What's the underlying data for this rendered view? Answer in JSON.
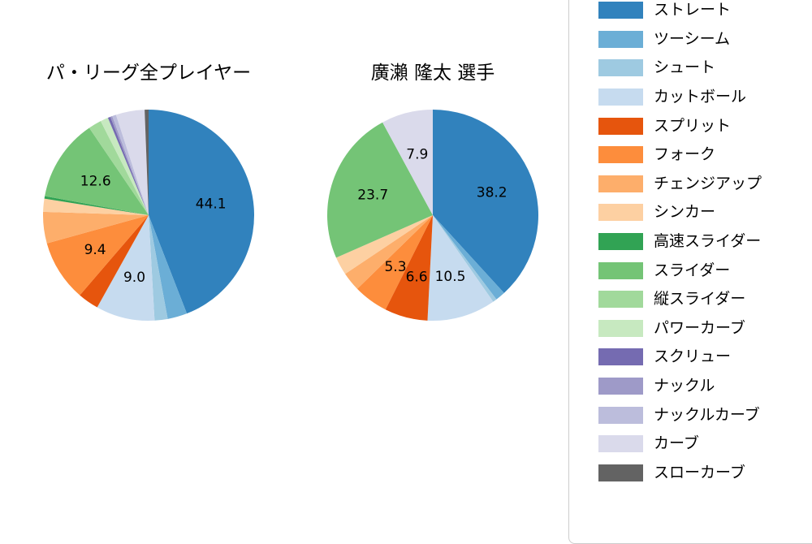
{
  "figure": {
    "background": "#ffffff"
  },
  "legend": {
    "items": [
      {
        "label": "ストレート",
        "color": "#3182bd"
      },
      {
        "label": "ツーシーム",
        "color": "#6baed6"
      },
      {
        "label": "シュート",
        "color": "#9ecae1"
      },
      {
        "label": "カットボール",
        "color": "#c6dbef"
      },
      {
        "label": "スプリット",
        "color": "#e6550d"
      },
      {
        "label": "フォーク",
        "color": "#fd8d3c"
      },
      {
        "label": "チェンジアップ",
        "color": "#fdae6b"
      },
      {
        "label": "シンカー",
        "color": "#fdd0a2"
      },
      {
        "label": "高速スライダー",
        "color": "#31a354"
      },
      {
        "label": "スライダー",
        "color": "#74c476"
      },
      {
        "label": "縦スライダー",
        "color": "#a1d99b"
      },
      {
        "label": "パワーカーブ",
        "color": "#c7e9c0"
      },
      {
        "label": "スクリュー",
        "color": "#756bb1"
      },
      {
        "label": "ナックル",
        "color": "#9e9ac8"
      },
      {
        "label": "ナックルカーブ",
        "color": "#bcbddc"
      },
      {
        "label": "カーブ",
        "color": "#dadaeb"
      },
      {
        "label": "スローカーブ",
        "color": "#636363"
      }
    ]
  },
  "chart_data": [
    {
      "type": "pie",
      "title": "パ・リーグ全プレイヤー",
      "categories": [
        "ストレート",
        "ツーシーム",
        "シュート",
        "カットボール",
        "スプリット",
        "フォーク",
        "チェンジアップ",
        "シンカー",
        "高速スライダー",
        "スライダー",
        "縦スライダー",
        "パワーカーブ",
        "スクリュー",
        "ナックル",
        "ナックルカーブ",
        "カーブ",
        "スローカーブ"
      ],
      "values": [
        44.1,
        3.0,
        2.0,
        9.0,
        3.2,
        9.4,
        4.8,
        2.0,
        0.4,
        12.6,
        2.0,
        1.2,
        0.4,
        0.3,
        0.6,
        4.4,
        0.6
      ],
      "colors": [
        "#3182bd",
        "#6baed6",
        "#9ecae1",
        "#c6dbef",
        "#e6550d",
        "#fd8d3c",
        "#fdae6b",
        "#fdd0a2",
        "#31a354",
        "#74c476",
        "#a1d99b",
        "#c7e9c0",
        "#756bb1",
        "#9e9ac8",
        "#bcbddc",
        "#dadaeb",
        "#636363"
      ],
      "shown_value_labels": [
        "44.1",
        "9.0",
        "9.4",
        "12.6"
      ],
      "start_angle_deg": 90,
      "direction": "clockwise",
      "label_threshold_pct": 5.0,
      "label_radius_fraction": 0.6
    },
    {
      "type": "pie",
      "title": "廣瀨 隆太 選手",
      "categories": [
        "ストレート",
        "ツーシーム",
        "シュート",
        "カットボール",
        "スプリット",
        "フォーク",
        "チェンジアップ",
        "シンカー",
        "高速スライダー",
        "スライダー",
        "縦スライダー",
        "パワーカーブ",
        "スクリュー",
        "ナックル",
        "ナックルカーブ",
        "カーブ",
        "スローカーブ"
      ],
      "values": [
        38.2,
        1.5,
        0.6,
        10.5,
        6.6,
        5.3,
        2.9,
        2.8,
        0.0,
        23.7,
        0.0,
        0.0,
        0.0,
        0.0,
        0.0,
        7.9,
        0.0
      ],
      "colors": [
        "#3182bd",
        "#6baed6",
        "#9ecae1",
        "#c6dbef",
        "#e6550d",
        "#fd8d3c",
        "#fdae6b",
        "#fdd0a2",
        "#31a354",
        "#74c476",
        "#a1d99b",
        "#c7e9c0",
        "#756bb1",
        "#9e9ac8",
        "#bcbddc",
        "#dadaeb",
        "#636363"
      ],
      "shown_value_labels": [
        "38.2",
        "10.5",
        "6.6",
        "5.3",
        "23.7",
        "7.9"
      ],
      "start_angle_deg": 90,
      "direction": "clockwise",
      "label_threshold_pct": 5.0,
      "label_radius_fraction": 0.6
    }
  ]
}
